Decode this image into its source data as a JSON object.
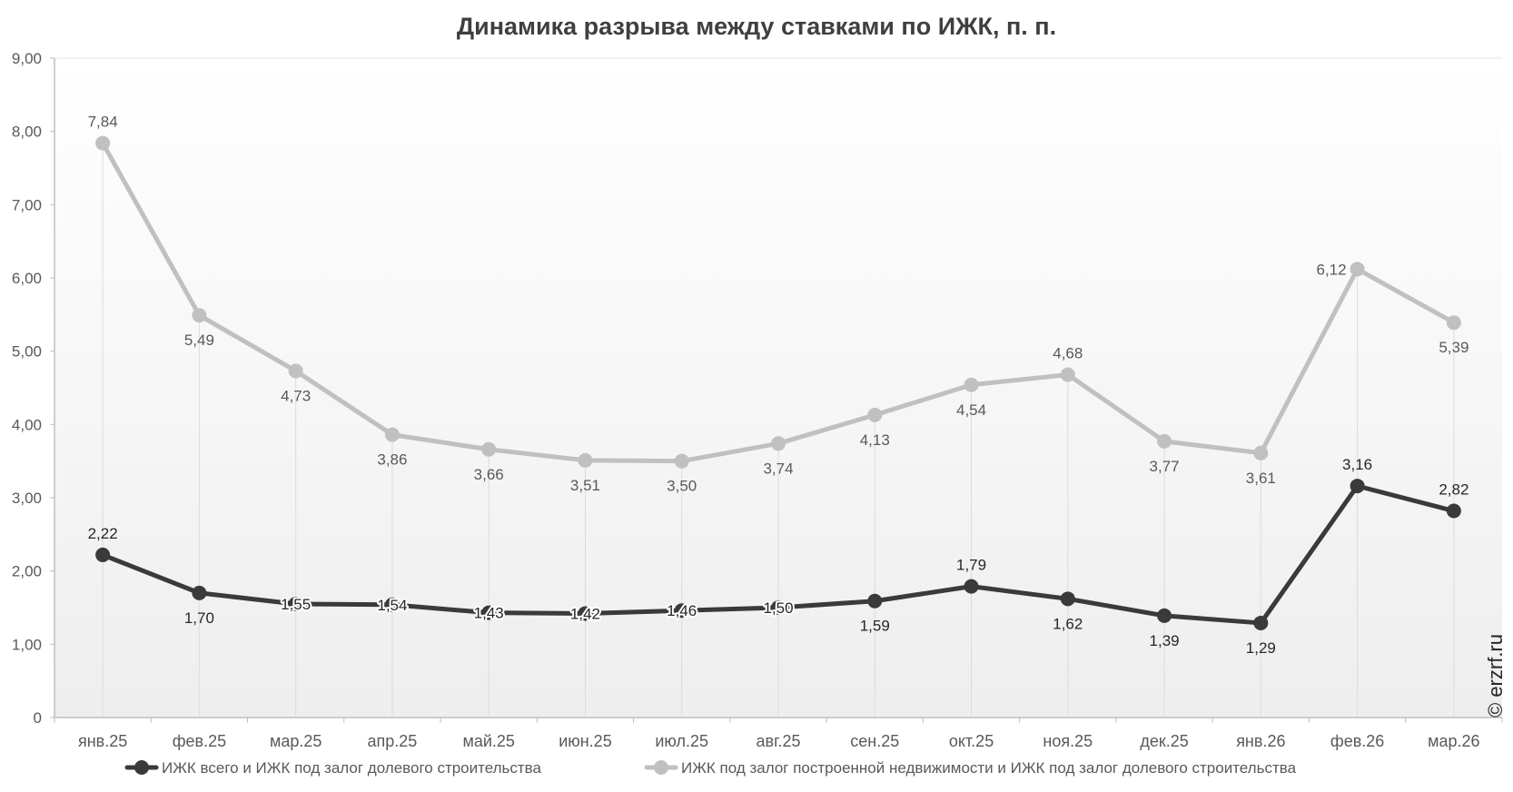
{
  "chart_data": {
    "type": "line",
    "title": "Динамика разрыва между ставками по ИЖК, п. п.",
    "categories": [
      "янв.25",
      "фев.25",
      "мар.25",
      "апр.25",
      "май.25",
      "июн.25",
      "июл.25",
      "авг.25",
      "сен.25",
      "окт.25",
      "ноя.25",
      "дек.25",
      "янв.26",
      "фев.26",
      "мар.26"
    ],
    "ylim": [
      0,
      9
    ],
    "yticks": [
      "0",
      "1,00",
      "2,00",
      "3,00",
      "4,00",
      "5,00",
      "6,00",
      "7,00",
      "8,00",
      "9,00"
    ],
    "grid": "vertical",
    "legend_position": "bottom",
    "series": [
      {
        "name": "ИЖК всего  и  ИЖК под залог долевого строительства",
        "color": "#3a3a3a",
        "values": [
          2.22,
          1.7,
          1.55,
          1.54,
          1.43,
          1.42,
          1.46,
          1.5,
          1.59,
          1.79,
          1.62,
          1.39,
          1.29,
          3.16,
          2.82
        ],
        "labels": [
          "2,22",
          "1,70",
          "1,55",
          "1,54",
          "1,43",
          "1,42",
          "1,46",
          "1,50",
          "1,59",
          "1,79",
          "1,62",
          "1,39",
          "1,29",
          "3,16",
          "2,82"
        ]
      },
      {
        "name": "ИЖК под залог построенной недвижимости  и  ИЖК под залог долевого строительства",
        "color": "#c0c0c0",
        "values": [
          7.84,
          5.49,
          4.73,
          3.86,
          3.66,
          3.51,
          3.5,
          3.74,
          4.13,
          4.54,
          4.68,
          3.77,
          3.61,
          6.12,
          5.39
        ],
        "labels": [
          "7,84",
          "5,49",
          "4,73",
          "3,86",
          "3,66",
          "3,51",
          "3,50",
          "3,74",
          "4,13",
          "4,54",
          "4,68",
          "3,77",
          "3,61",
          "6,12",
          "5,39"
        ]
      }
    ]
  },
  "watermark": "© erzrf.ru"
}
